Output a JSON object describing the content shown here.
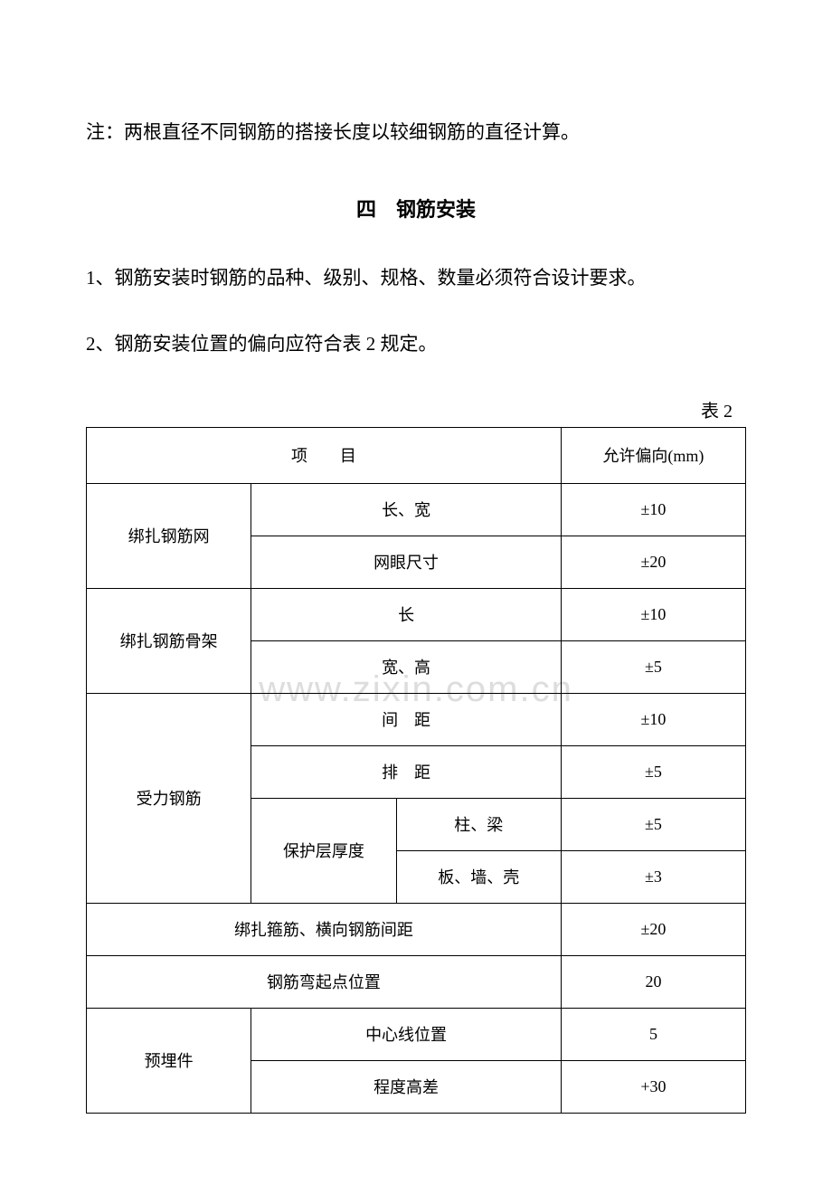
{
  "note": "注：两根直径不同钢筋的搭接长度以较细钢筋的直径计算。",
  "section_title": "四　钢筋安装",
  "item1": "1、钢筋安装时钢筋的品种、级别、规格、数量必须符合设计要求。",
  "item2": "2、钢筋安装位置的偏向应符合表 2 规定。",
  "table_label": "表 2",
  "watermark": "www.zixin.com.cn",
  "table": {
    "header": {
      "item": "项　　目",
      "tolerance": "允许偏向(mm)"
    },
    "rows": [
      {
        "category": "绑扎钢筋网",
        "subrows": [
          {
            "desc": "长、宽",
            "tolerance": "±10"
          },
          {
            "desc": "网眼尺寸",
            "tolerance": "±20"
          }
        ]
      },
      {
        "category": "绑扎钢筋骨架",
        "subrows": [
          {
            "desc": "长",
            "tolerance": "±10"
          },
          {
            "desc": "宽、高",
            "tolerance": "±5"
          }
        ]
      },
      {
        "category": "受力钢筋",
        "subrows": [
          {
            "desc": "间　距",
            "tolerance": "±10"
          },
          {
            "desc": "排　距",
            "tolerance": "±5"
          },
          {
            "subcategory": "保护层厚度",
            "items": [
              {
                "desc": "柱、梁",
                "tolerance": "±5"
              },
              {
                "desc": "板、墙、壳",
                "tolerance": "±3"
              }
            ]
          }
        ]
      },
      {
        "full": "绑扎箍筋、横向钢筋间距",
        "tolerance": "±20"
      },
      {
        "full": "钢筋弯起点位置",
        "tolerance": "20"
      },
      {
        "category": "预埋件",
        "subrows": [
          {
            "desc": "中心线位置",
            "tolerance": "5"
          },
          {
            "desc": "程度高差",
            "tolerance": "+30"
          }
        ]
      }
    ]
  }
}
